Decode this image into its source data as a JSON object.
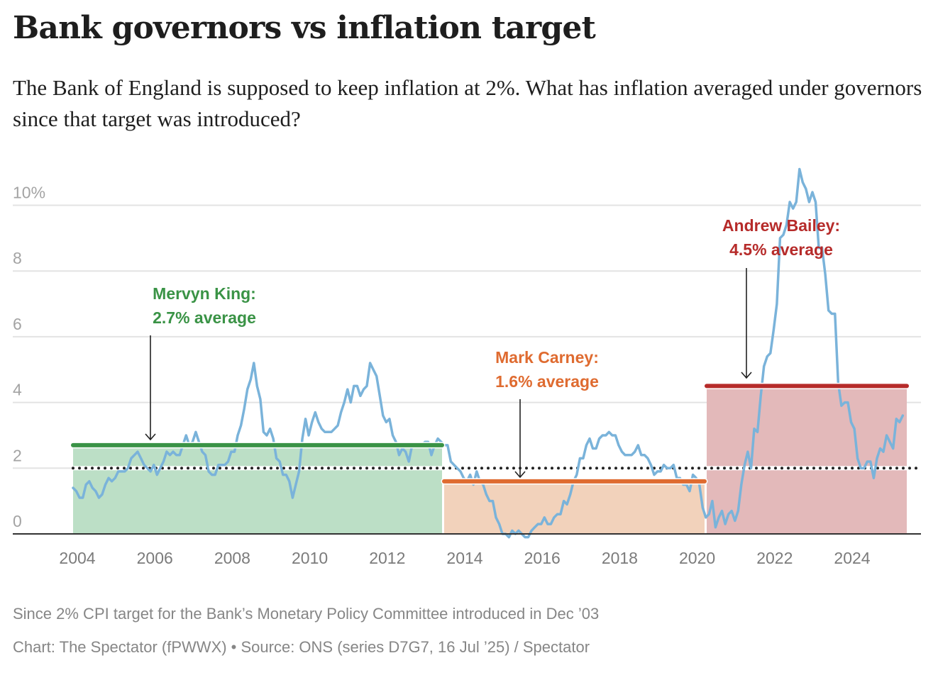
{
  "header": {
    "title": "Bank governors vs inflation target",
    "subtitle": "The Bank of England is supposed to keep inflation at 2%. What has inflation averaged under governors since that target was introduced?"
  },
  "footer": {
    "note": "Since 2% CPI target for the Bank’s Monetary Policy Committee introduced in Dec ’03",
    "source": "Chart: The Spectator (fPWWX) • Source: ONS (series D7G7, 16 Jul ’25) / Spectator"
  },
  "colors": {
    "line": "#7ab3da",
    "king": "#3a9346",
    "king_fill": "#bcdfc6",
    "carney": "#df6b30",
    "carney_fill": "#f2d2bb",
    "bailey": "#b62b2a",
    "bailey_fill": "#e3b9ba",
    "target": "#222222",
    "grid": "#e3e3e3",
    "axis": "#333333"
  },
  "chart_data": {
    "type": "line",
    "title": "Bank governors vs inflation target",
    "xlabel": "",
    "ylabel": "",
    "ylim": [
      0,
      11
    ],
    "xlim": [
      "2004-01",
      "2025-06"
    ],
    "grid": true,
    "y_ticks": [
      {
        "value": 0,
        "label": "0"
      },
      {
        "value": 2,
        "label": "2"
      },
      {
        "value": 4,
        "label": "4"
      },
      {
        "value": 6,
        "label": "6"
      },
      {
        "value": 8,
        "label": "8"
      },
      {
        "value": 10,
        "label": "10%"
      }
    ],
    "x_ticks": [
      "2004",
      "2006",
      "2008",
      "2010",
      "2012",
      "2014",
      "2016",
      "2018",
      "2020",
      "2022",
      "2024"
    ],
    "target": {
      "value": 2,
      "label": "2% target"
    },
    "governors": [
      {
        "name": "Mervyn King",
        "label_line1": "Mervyn King:",
        "label_line2": "2.7% average",
        "average": 2.7,
        "start": "2004-01",
        "end": "2013-06",
        "color_key": "king"
      },
      {
        "name": "Mark Carney",
        "label_line1": "Mark Carney:",
        "label_line2": "1.6% average",
        "average": 1.6,
        "start": "2013-07",
        "end": "2020-03",
        "color_key": "carney"
      },
      {
        "name": "Andrew Bailey",
        "label_line1": "Andrew Bailey:",
        "label_line2": "4.5% average",
        "average": 4.5,
        "start": "2020-03",
        "end": "2025-06",
        "color_key": "bailey"
      }
    ],
    "series": [
      {
        "name": "CPI annual rate (%)",
        "start": "2004-01",
        "frequency": "monthly",
        "values": [
          1.4,
          1.3,
          1.1,
          1.1,
          1.5,
          1.6,
          1.4,
          1.3,
          1.1,
          1.2,
          1.5,
          1.7,
          1.6,
          1.7,
          1.9,
          1.9,
          1.9,
          2.0,
          2.3,
          2.4,
          2.5,
          2.3,
          2.1,
          2.0,
          1.9,
          2.1,
          1.8,
          2.0,
          2.2,
          2.5,
          2.4,
          2.5,
          2.4,
          2.4,
          2.7,
          3.0,
          2.7,
          2.8,
          3.1,
          2.8,
          2.5,
          2.4,
          1.9,
          1.8,
          1.8,
          2.1,
          2.1,
          2.1,
          2.2,
          2.5,
          2.5,
          3.0,
          3.3,
          3.8,
          4.4,
          4.7,
          5.2,
          4.5,
          4.1,
          3.1,
          3.0,
          3.2,
          2.9,
          2.3,
          2.2,
          1.8,
          1.8,
          1.6,
          1.1,
          1.5,
          1.9,
          2.9,
          3.5,
          3.0,
          3.4,
          3.7,
          3.4,
          3.2,
          3.1,
          3.1,
          3.1,
          3.2,
          3.3,
          3.7,
          4.0,
          4.4,
          4.0,
          4.5,
          4.5,
          4.2,
          4.4,
          4.5,
          5.2,
          5.0,
          4.8,
          4.2,
          3.6,
          3.4,
          3.5,
          3.0,
          2.8,
          2.4,
          2.6,
          2.5,
          2.2,
          2.7,
          2.7,
          2.7,
          2.7,
          2.8,
          2.8,
          2.4,
          2.7,
          2.9,
          2.8,
          2.7,
          2.7,
          2.2,
          2.1,
          2.0,
          1.9,
          1.7,
          1.6,
          1.8,
          1.5,
          1.9,
          1.6,
          1.5,
          1.2,
          1.0,
          1.0,
          0.5,
          0.3,
          0.0,
          0.0,
          -0.1,
          0.1,
          0.0,
          0.1,
          0.0,
          -0.1,
          -0.1,
          0.1,
          0.2,
          0.3,
          0.3,
          0.5,
          0.3,
          0.3,
          0.5,
          0.6,
          0.6,
          1.0,
          0.9,
          1.2,
          1.6,
          1.8,
          2.3,
          2.3,
          2.7,
          2.9,
          2.6,
          2.6,
          2.9,
          3.0,
          3.0,
          3.1,
          3.0,
          3.0,
          2.7,
          2.5,
          2.4,
          2.4,
          2.4,
          2.5,
          2.7,
          2.4,
          2.4,
          2.3,
          2.1,
          1.8,
          1.9,
          1.9,
          2.1,
          2.0,
          2.0,
          2.1,
          1.7,
          1.7,
          1.5,
          1.5,
          1.3,
          1.8,
          1.7,
          1.5,
          0.8,
          0.5,
          0.6,
          1.0,
          0.2,
          0.5,
          0.7,
          0.3,
          0.6,
          0.7,
          0.4,
          0.7,
          1.5,
          2.1,
          2.5,
          2.0,
          3.2,
          3.1,
          4.2,
          5.1,
          5.4,
          5.5,
          6.2,
          7.0,
          9.0,
          9.1,
          9.4,
          10.1,
          9.9,
          10.1,
          11.1,
          10.7,
          10.5,
          10.1,
          10.4,
          10.1,
          8.7,
          8.7,
          7.9,
          6.8,
          6.7,
          6.7,
          4.6,
          3.9,
          4.0,
          4.0,
          3.4,
          3.2,
          2.3,
          2.0,
          2.0,
          2.2,
          2.2,
          1.7,
          2.3,
          2.6,
          2.5,
          3.0,
          2.8,
          2.6,
          3.5,
          3.4,
          3.6
        ]
      }
    ],
    "annotations": [
      {
        "text": "Mervyn King: 2.7% average",
        "points_to": "king-average-line"
      },
      {
        "text": "Mark Carney: 1.6% average",
        "points_to": "carney-average-line"
      },
      {
        "text": "Andrew Bailey: 4.5% average",
        "points_to": "bailey-average-line"
      }
    ]
  }
}
